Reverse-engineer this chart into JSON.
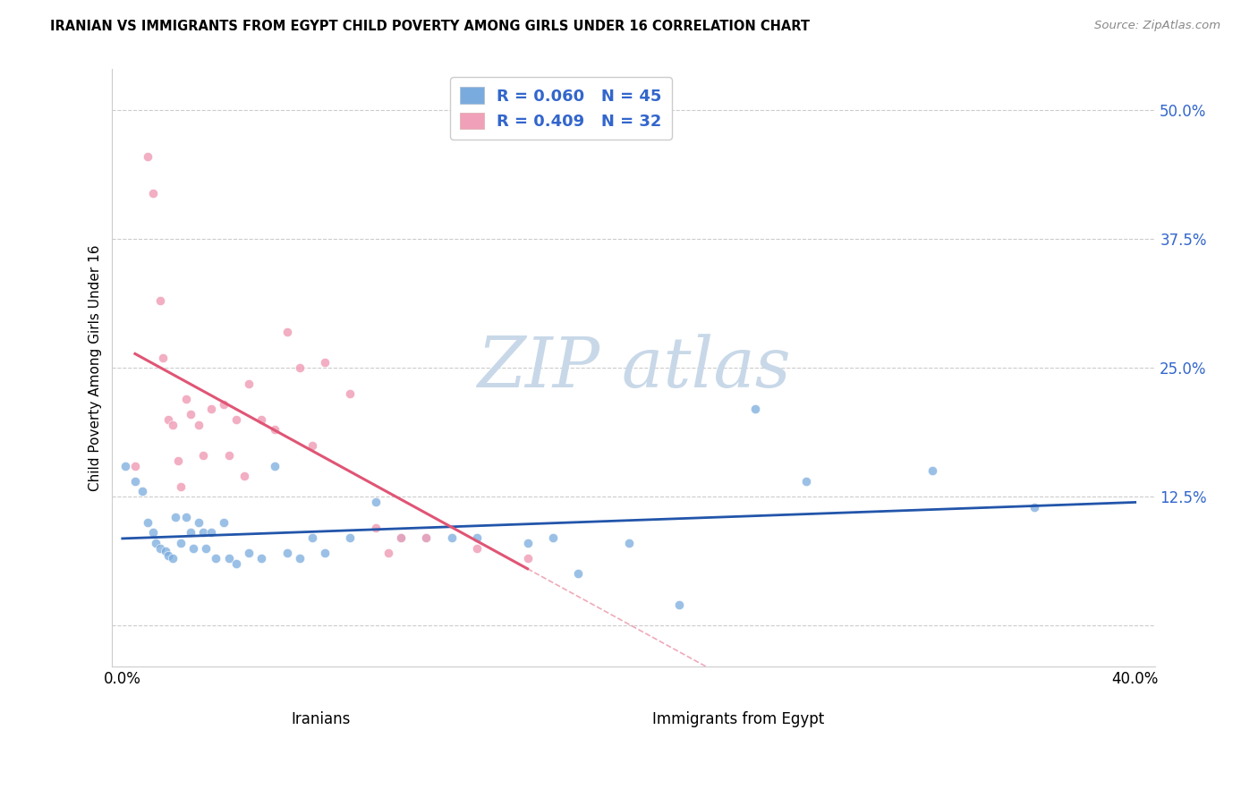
{
  "title": "IRANIAN VS IMMIGRANTS FROM EGYPT CHILD POVERTY AMONG GIRLS UNDER 16 CORRELATION CHART",
  "source": "Source: ZipAtlas.com",
  "xlabel_iranians": "Iranians",
  "xlabel_egypt": "Immigrants from Egypt",
  "ylabel": "Child Poverty Among Girls Under 16",
  "xlim": [
    -0.004,
    0.408
  ],
  "ylim": [
    -0.04,
    0.54
  ],
  "ytick_vals": [
    0.0,
    0.125,
    0.25,
    0.375,
    0.5
  ],
  "ytick_labels": [
    "",
    "12.5%",
    "25.0%",
    "37.5%",
    "50.0%"
  ],
  "xtick_vals": [
    0.0,
    0.1,
    0.2,
    0.3,
    0.4
  ],
  "xtick_labels": [
    "0.0%",
    "",
    "",
    "",
    "40.0%"
  ],
  "grid_color": "#cccccc",
  "iranians_color": "#7aabde",
  "egypt_color": "#f0a0b8",
  "iranians_line_color": "#2255aa",
  "egypt_line_color": "#e05575",
  "iranians_R": 0.06,
  "iranians_N": 45,
  "egypt_R": 0.409,
  "egypt_N": 32,
  "legend_text_color": "#3366cc",
  "watermark_color": "#c8d8e8",
  "iranians_x": [
    0.001,
    0.005,
    0.008,
    0.01,
    0.012,
    0.013,
    0.015,
    0.017,
    0.018,
    0.02,
    0.021,
    0.023,
    0.025,
    0.027,
    0.028,
    0.03,
    0.032,
    0.033,
    0.035,
    0.037,
    0.04,
    0.042,
    0.045,
    0.05,
    0.055,
    0.06,
    0.065,
    0.07,
    0.075,
    0.08,
    0.09,
    0.1,
    0.11,
    0.12,
    0.13,
    0.14,
    0.16,
    0.17,
    0.18,
    0.2,
    0.22,
    0.25,
    0.27,
    0.32,
    0.36
  ],
  "iranians_y": [
    0.155,
    0.14,
    0.13,
    0.1,
    0.09,
    0.08,
    0.075,
    0.072,
    0.068,
    0.065,
    0.105,
    0.08,
    0.105,
    0.09,
    0.075,
    0.1,
    0.09,
    0.075,
    0.09,
    0.065,
    0.1,
    0.065,
    0.06,
    0.07,
    0.065,
    0.155,
    0.07,
    0.065,
    0.085,
    0.07,
    0.085,
    0.12,
    0.085,
    0.085,
    0.085,
    0.085,
    0.08,
    0.085,
    0.05,
    0.08,
    0.02,
    0.21,
    0.14,
    0.15,
    0.115
  ],
  "egypt_x": [
    0.005,
    0.01,
    0.012,
    0.015,
    0.016,
    0.018,
    0.02,
    0.022,
    0.023,
    0.025,
    0.027,
    0.03,
    0.032,
    0.035,
    0.04,
    0.042,
    0.045,
    0.048,
    0.05,
    0.055,
    0.06,
    0.065,
    0.07,
    0.075,
    0.08,
    0.09,
    0.1,
    0.105,
    0.11,
    0.12,
    0.14,
    0.16
  ],
  "egypt_y": [
    0.155,
    0.455,
    0.42,
    0.315,
    0.26,
    0.2,
    0.195,
    0.16,
    0.135,
    0.22,
    0.205,
    0.195,
    0.165,
    0.21,
    0.215,
    0.165,
    0.2,
    0.145,
    0.235,
    0.2,
    0.19,
    0.285,
    0.25,
    0.175,
    0.255,
    0.225,
    0.095,
    0.07,
    0.085,
    0.085,
    0.075,
    0.065
  ]
}
